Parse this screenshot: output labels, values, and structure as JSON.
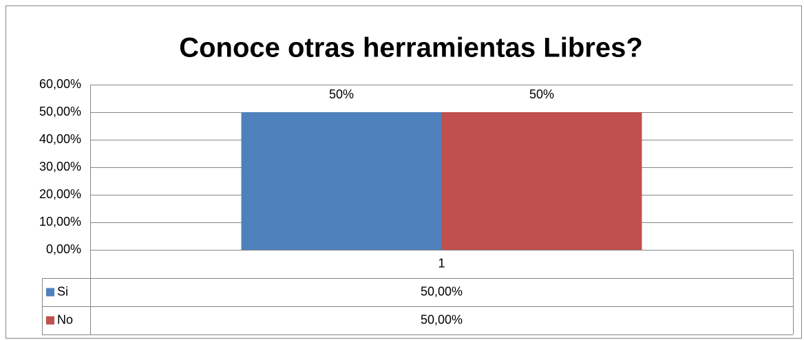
{
  "chart_data": {
    "type": "bar",
    "title": "Conoce otras herramientas Libres?",
    "categories": [
      "1"
    ],
    "series": [
      {
        "name": "Si",
        "color": "#4f81bd",
        "values": [
          50
        ],
        "value_labels": [
          "50%"
        ],
        "table_labels": [
          "50,00%"
        ]
      },
      {
        "name": "No",
        "color": "#c0504d",
        "values": [
          50
        ],
        "value_labels": [
          "50%"
        ],
        "table_labels": [
          "50,00%"
        ]
      }
    ],
    "ylim": [
      0,
      60
    ],
    "yticks": [
      {
        "value": 0,
        "label": "0,00%"
      },
      {
        "value": 10,
        "label": "10,00%"
      },
      {
        "value": 20,
        "label": "20,00%"
      },
      {
        "value": 30,
        "label": "30,00%"
      },
      {
        "value": 40,
        "label": "40,00%"
      },
      {
        "value": 50,
        "label": "50,00%"
      },
      {
        "value": 60,
        "label": "60,00%"
      }
    ],
    "grid": true
  }
}
